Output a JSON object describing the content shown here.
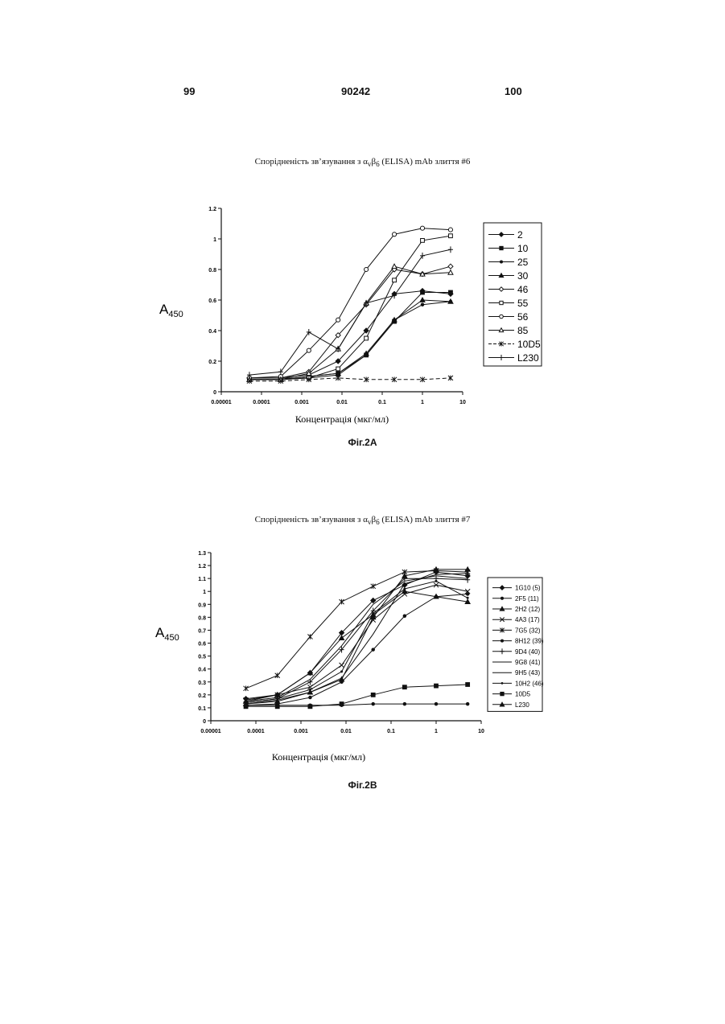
{
  "header": {
    "left_page": "99",
    "patent_number": "90242",
    "right_page": "100"
  },
  "chart_data": [
    {
      "type": "line",
      "title_parts": [
        "Спорідненість зв’язування з α",
        "v",
        "β",
        "6",
        " (ELISA) mAb злиття #6"
      ],
      "xlabel": "Концентрація (мкг/мл)",
      "ylabel_main": "A",
      "ylabel_sub": "450",
      "figure_label": "Фіг.2А",
      "x_scale": "log",
      "xlim": [
        1e-05,
        10
      ],
      "x_ticks": [
        "0.00001",
        "0.0001",
        "0.001",
        "0.01",
        "0.1",
        "1",
        "10"
      ],
      "ylim": [
        0,
        1.2
      ],
      "y_ticks": [
        "0",
        "0.2",
        "0.4",
        "0.6",
        "0.8",
        "1",
        "1.2"
      ],
      "legend_position": "right",
      "x": [
        5e-05,
        0.0003,
        0.0015,
        0.008,
        0.04,
        0.2,
        1,
        5
      ],
      "series": [
        {
          "name": "2",
          "marker": "diamond-filled",
          "dash": "solid",
          "values": [
            0.09,
            0.09,
            0.11,
            0.2,
            0.4,
            0.64,
            0.66,
            0.64
          ]
        },
        {
          "name": "10",
          "marker": "square-filled",
          "dash": "solid",
          "values": [
            0.08,
            0.08,
            0.1,
            0.12,
            0.24,
            0.46,
            0.65,
            0.65
          ]
        },
        {
          "name": "25",
          "marker": "dot",
          "dash": "solid",
          "values": [
            0.08,
            0.08,
            0.09,
            0.11,
            0.24,
            0.47,
            0.57,
            0.59
          ]
        },
        {
          "name": "30",
          "marker": "triangle-filled",
          "dash": "solid",
          "values": [
            0.08,
            0.08,
            0.1,
            0.12,
            0.25,
            0.47,
            0.6,
            0.59
          ]
        },
        {
          "name": "46",
          "marker": "diamond-open",
          "dash": "solid",
          "values": [
            0.09,
            0.09,
            0.13,
            0.37,
            0.57,
            0.8,
            0.77,
            0.82
          ]
        },
        {
          "name": "55",
          "marker": "square-open",
          "dash": "solid",
          "values": [
            0.08,
            0.08,
            0.09,
            0.15,
            0.35,
            0.73,
            0.99,
            1.02
          ]
        },
        {
          "name": "56",
          "marker": "circle-open",
          "dash": "solid",
          "values": [
            0.09,
            0.1,
            0.27,
            0.47,
            0.8,
            1.03,
            1.07,
            1.06
          ]
        },
        {
          "name": "85",
          "marker": "triangle-open",
          "dash": "solid",
          "values": [
            0.08,
            0.08,
            0.12,
            0.28,
            0.58,
            0.82,
            0.77,
            0.78
          ]
        },
        {
          "name": "10D5",
          "marker": "star",
          "dash": "dashed",
          "values": [
            0.07,
            0.07,
            0.08,
            0.09,
            0.08,
            0.08,
            0.08,
            0.09
          ]
        },
        {
          "name": "L230",
          "marker": "plus",
          "dash": "solid",
          "values": [
            0.11,
            0.13,
            0.39,
            0.28,
            0.58,
            0.63,
            0.89,
            0.93
          ]
        }
      ]
    },
    {
      "type": "line",
      "title_parts": [
        "Спорідненість зв’язування з α",
        "v",
        "β",
        "6",
        " (ELISA) mAb злиття #7"
      ],
      "xlabel": "Концентрація (мкг/мл)",
      "ylabel_main": "A",
      "ylabel_sub": "450",
      "figure_label": "Фіг.2В",
      "x_scale": "log",
      "xlim": [
        1e-05,
        10
      ],
      "x_ticks": [
        "0.00001",
        "0.0001",
        "0.001",
        "0.01",
        "0.1",
        "1",
        "10"
      ],
      "ylim": [
        0,
        1.3
      ],
      "y_ticks": [
        "0",
        "0.1",
        "0.2",
        "0.3",
        "0.4",
        "0.5",
        "0.6",
        "0.7",
        "0.8",
        "0.9",
        "1",
        "1.1",
        "1.2",
        "1.3"
      ],
      "legend_position": "right",
      "x": [
        6e-05,
        0.0003,
        0.0016,
        0.008,
        0.04,
        0.2,
        1,
        5
      ],
      "series": [
        {
          "name": "1G10 (5)",
          "marker": "diamond-filled",
          "dash": "solid",
          "values": [
            0.17,
            0.2,
            0.37,
            0.68,
            0.93,
            1.05,
            1.15,
            1.12
          ]
        },
        {
          "name": "2F5 (11)",
          "marker": "dot",
          "dash": "solid",
          "values": [
            0.12,
            0.12,
            0.12,
            0.12,
            0.13,
            0.13,
            0.13,
            0.13
          ]
        },
        {
          "name": "2H2 (12)",
          "marker": "triangle-filled",
          "dash": "solid",
          "values": [
            0.15,
            0.2,
            0.37,
            0.64,
            0.82,
            1.0,
            0.96,
            0.92
          ]
        },
        {
          "name": "4A3 (17)",
          "marker": "x",
          "dash": "solid",
          "values": [
            0.16,
            0.2,
            0.26,
            0.43,
            0.78,
            0.98,
            1.05,
            1.0
          ]
        },
        {
          "name": "7G5 (32)",
          "marker": "star",
          "dash": "solid",
          "values": [
            0.25,
            0.35,
            0.65,
            0.92,
            1.04,
            1.15,
            1.16,
            1.15
          ]
        },
        {
          "name": "8H12 (39)",
          "marker": "dot",
          "dash": "solid",
          "values": [
            0.12,
            0.13,
            0.18,
            0.3,
            0.55,
            0.81,
            0.96,
            0.98
          ]
        },
        {
          "name": "9D4 (40)",
          "marker": "plus",
          "dash": "solid",
          "values": [
            0.14,
            0.17,
            0.3,
            0.55,
            0.85,
            1.1,
            1.1,
            1.09
          ]
        },
        {
          "name": "9G8 (41)",
          "marker": "none",
          "dash": "solid",
          "values": [
            0.15,
            0.18,
            0.32,
            0.58,
            0.9,
            1.08,
            1.12,
            1.1
          ]
        },
        {
          "name": "9H5 (43)",
          "marker": "none",
          "dash": "solid",
          "values": [
            0.13,
            0.16,
            0.22,
            0.33,
            0.67,
            1.06,
            1.13,
            1.14
          ]
        },
        {
          "name": "10H2 (46)",
          "marker": "dot-small",
          "dash": "solid",
          "values": [
            0.14,
            0.17,
            0.24,
            0.38,
            0.83,
            1.02,
            1.08,
            0.95
          ]
        },
        {
          "name": "10D5",
          "marker": "square-filled",
          "dash": "solid",
          "values": [
            0.11,
            0.11,
            0.11,
            0.13,
            0.2,
            0.26,
            0.27,
            0.28
          ]
        },
        {
          "name": "L230",
          "marker": "triangle-filled",
          "dash": "solid",
          "values": [
            0.13,
            0.15,
            0.22,
            0.32,
            0.8,
            1.12,
            1.17,
            1.17
          ]
        }
      ]
    }
  ]
}
